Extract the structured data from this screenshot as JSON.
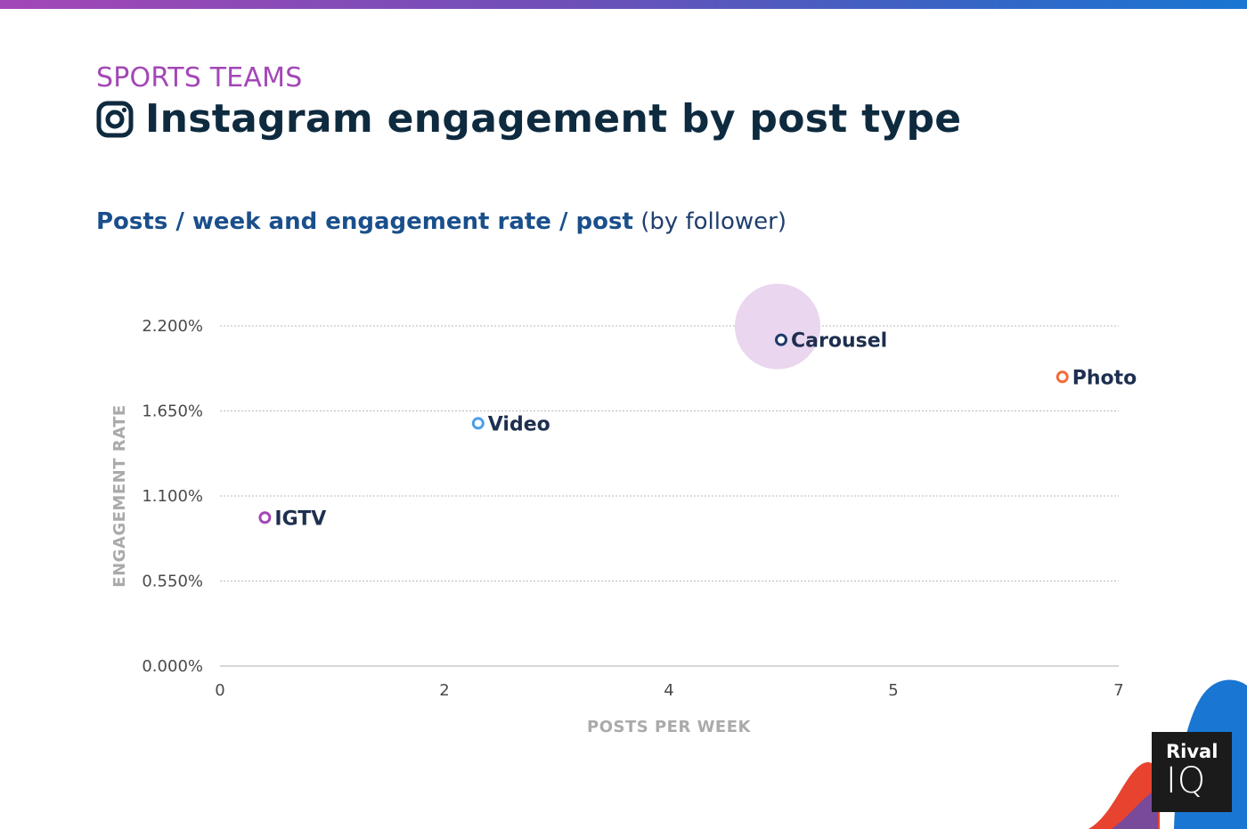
{
  "header": {
    "kicker": "SPORTS TEAMS",
    "title": "Instagram engagement by post type",
    "subtitle_bold": "Posts / week and engagement rate / post",
    "subtitle_light": "(by follower)"
  },
  "brand": {
    "name_top": "Rival",
    "name_bottom": "IQ"
  },
  "colors": {
    "kicker": "#a347b6",
    "title": "#0e2a3f",
    "subtitle": "#1a4f8b",
    "igtv": "#a347b6",
    "video": "#4a9ee8",
    "carousel": "#1e3a6b",
    "photo": "#f26b3a",
    "highlight": "#ead6ef"
  },
  "chart_data": {
    "type": "scatter",
    "title": "Posts / week and engagement rate / post (by follower)",
    "xlabel": "POSTS PER WEEK",
    "ylabel": "ENGAGEMENT RATE",
    "x_ticks": [
      "0",
      "2",
      "4",
      "5",
      "7"
    ],
    "y_ticks": [
      "0.000%",
      "0.550%",
      "1.100%",
      "1.650%",
      "2.200%"
    ],
    "ylim": [
      0,
      2.2
    ],
    "grid": true,
    "highlight": "Carousel",
    "points": [
      {
        "name": "IGTV",
        "x": 0.4,
        "y": 0.96,
        "color": "#a347b6"
      },
      {
        "name": "Video",
        "x": 2.3,
        "y": 1.57,
        "color": "#4a9ee8"
      },
      {
        "name": "Carousel",
        "x": 4.5,
        "y": 2.11,
        "color": "#1e3a6b"
      },
      {
        "name": "Photo",
        "x": 6.5,
        "y": 1.87,
        "color": "#f26b3a"
      }
    ]
  }
}
